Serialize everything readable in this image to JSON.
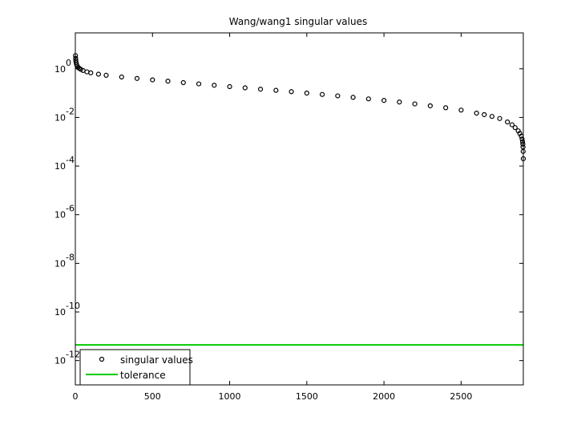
{
  "chart_data": {
    "type": "scatter",
    "title": "Wang/wang1 singular values",
    "xlabel": "",
    "ylabel": "",
    "x_scale": "linear",
    "y_scale": "log",
    "xlim": [
      0,
      2903
    ],
    "ylim": [
      1e-13,
      30
    ],
    "x_ticks": [
      0,
      500,
      1000,
      1500,
      2000,
      2500
    ],
    "y_ticks": [
      {
        "value": 1,
        "base": "10",
        "exp": "0"
      },
      {
        "value": 0.01,
        "base": "10",
        "exp": "-2"
      },
      {
        "value": 0.0001,
        "base": "10",
        "exp": "-4"
      },
      {
        "value": 1e-06,
        "base": "10",
        "exp": "-6"
      },
      {
        "value": 1e-08,
        "base": "10",
        "exp": "-8"
      },
      {
        "value": 1e-10,
        "base": "10",
        "exp": "-10"
      },
      {
        "value": 1e-12,
        "base": "10",
        "exp": "-12"
      }
    ],
    "grid": false,
    "legend_position": "bottom-left",
    "series": [
      {
        "name": "singular values",
        "marker": "circle",
        "color": "#000000",
        "x": [
          1,
          2,
          3,
          5,
          8,
          12,
          18,
          25,
          35,
          50,
          75,
          100,
          150,
          200,
          300,
          400,
          500,
          600,
          700,
          800,
          900,
          1000,
          1100,
          1200,
          1300,
          1400,
          1500,
          1600,
          1700,
          1800,
          1900,
          2000,
          2100,
          2200,
          2300,
          2400,
          2500,
          2600,
          2650,
          2700,
          2750,
          2800,
          2830,
          2850,
          2870,
          2880,
          2890,
          2895,
          2898,
          2900,
          2901,
          2902,
          2903
        ],
        "y": [
          3.5,
          2.7,
          2.2,
          1.8,
          1.5,
          1.3,
          1.15,
          1.05,
          0.95,
          0.85,
          0.75,
          0.68,
          0.6,
          0.54,
          0.46,
          0.4,
          0.35,
          0.31,
          0.27,
          0.24,
          0.21,
          0.185,
          0.165,
          0.145,
          0.13,
          0.115,
          0.1,
          0.088,
          0.077,
          0.067,
          0.058,
          0.05,
          0.043,
          0.036,
          0.03,
          0.025,
          0.02,
          0.015,
          0.013,
          0.011,
          0.009,
          0.0065,
          0.005,
          0.0038,
          0.0028,
          0.0022,
          0.0017,
          0.0013,
          0.001,
          0.0008,
          0.0006,
          0.0004,
          0.0002
        ]
      },
      {
        "name": "tolerance",
        "type": "line",
        "color": "#00cc00",
        "x": [
          0,
          2903
        ],
        "y": [
          4.4e-12,
          4.4e-12
        ]
      }
    ]
  }
}
